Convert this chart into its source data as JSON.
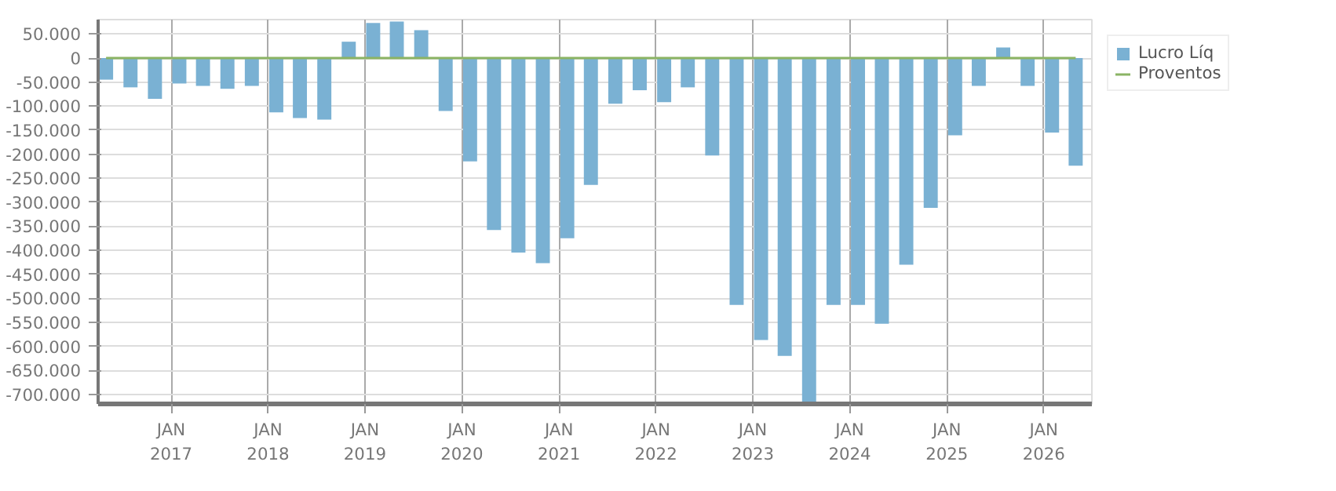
{
  "chart_data": {
    "type": "bar",
    "x": [
      "2016-05",
      "2016-08",
      "2016-11",
      "2017-02",
      "2017-05",
      "2017-08",
      "2017-11",
      "2018-02",
      "2018-05",
      "2018-08",
      "2018-11",
      "2019-02",
      "2019-05",
      "2019-08",
      "2019-11",
      "2020-02",
      "2020-05",
      "2020-08",
      "2020-11",
      "2021-02",
      "2021-05",
      "2021-08",
      "2021-11",
      "2022-02",
      "2022-05",
      "2022-08",
      "2022-11",
      "2023-02",
      "2023-05",
      "2023-08",
      "2023-11",
      "2024-02",
      "2024-05",
      "2024-08",
      "2024-11",
      "2025-02",
      "2025-05",
      "2025-08",
      "2025-11",
      "2026-02",
      "2026-05"
    ],
    "series": [
      {
        "name": "Lucro Líq",
        "color": "#7ab1d3",
        "values": [
          -45000,
          -61000,
          -85000,
          -53000,
          -58000,
          -64000,
          -58000,
          -113000,
          -125000,
          -128000,
          34000,
          73000,
          76000,
          58000,
          -110000,
          -215000,
          -358000,
          -405000,
          -427000,
          -375000,
          -264000,
          -95000,
          -67000,
          -92000,
          -61000,
          -203000,
          -514000,
          -587000,
          -620000,
          -715000,
          -514000,
          -514000,
          -553000,
          -430000,
          -312000,
          -161000,
          -58000,
          22000,
          -58000,
          -155000,
          -224000
        ]
      },
      {
        "name": "Proventos",
        "color": "#8bb464",
        "type": "line",
        "values": [
          0,
          0,
          0,
          0,
          0,
          0,
          0,
          0,
          0,
          0,
          0,
          0,
          0,
          0,
          0,
          0,
          0,
          0,
          0,
          0,
          0,
          0,
          0,
          0,
          0,
          0,
          0,
          0,
          0,
          0,
          0,
          0,
          0,
          0,
          0,
          0,
          0,
          0,
          0,
          0,
          0
        ]
      }
    ],
    "xlim": [
      "2016-04",
      "2026-07"
    ],
    "xticks": [
      {
        "value": "2017-01",
        "label": "JAN\n2017"
      },
      {
        "value": "2018-01",
        "label": "JAN\n2018"
      },
      {
        "value": "2019-01",
        "label": "JAN\n2019"
      },
      {
        "value": "2020-01",
        "label": "JAN\n2020"
      },
      {
        "value": "2021-01",
        "label": "JAN\n2021"
      },
      {
        "value": "2022-01",
        "label": "JAN\n2022"
      },
      {
        "value": "2023-01",
        "label": "JAN\n2023"
      },
      {
        "value": "2024-01",
        "label": "JAN\n2024"
      },
      {
        "value": "2025-01",
        "label": "JAN\n2025"
      },
      {
        "value": "2026-01",
        "label": "JAN\n2026"
      }
    ],
    "ylim": [
      -720000,
      80000
    ],
    "yticks": [
      {
        "value": 50000,
        "label": "50.000"
      },
      {
        "value": 0,
        "label": "0"
      },
      {
        "value": -50000,
        "label": "-50.000"
      },
      {
        "value": -100000,
        "label": "-100.000"
      },
      {
        "value": -150000,
        "label": "-150.000"
      },
      {
        "value": -200000,
        "label": "-200.000"
      },
      {
        "value": -250000,
        "label": "-250.000"
      },
      {
        "value": -300000,
        "label": "-300.000"
      },
      {
        "value": -350000,
        "label": "-350.000"
      },
      {
        "value": -400000,
        "label": "-400.000"
      },
      {
        "value": -450000,
        "label": "-450.000"
      },
      {
        "value": -500000,
        "label": "-500.000"
      },
      {
        "value": -550000,
        "label": "-550.000"
      },
      {
        "value": -600000,
        "label": "-600.000"
      },
      {
        "value": -650000,
        "label": "-650.000"
      },
      {
        "value": -700000,
        "label": "-700.000"
      }
    ],
    "grid": true,
    "legend": "top right"
  }
}
